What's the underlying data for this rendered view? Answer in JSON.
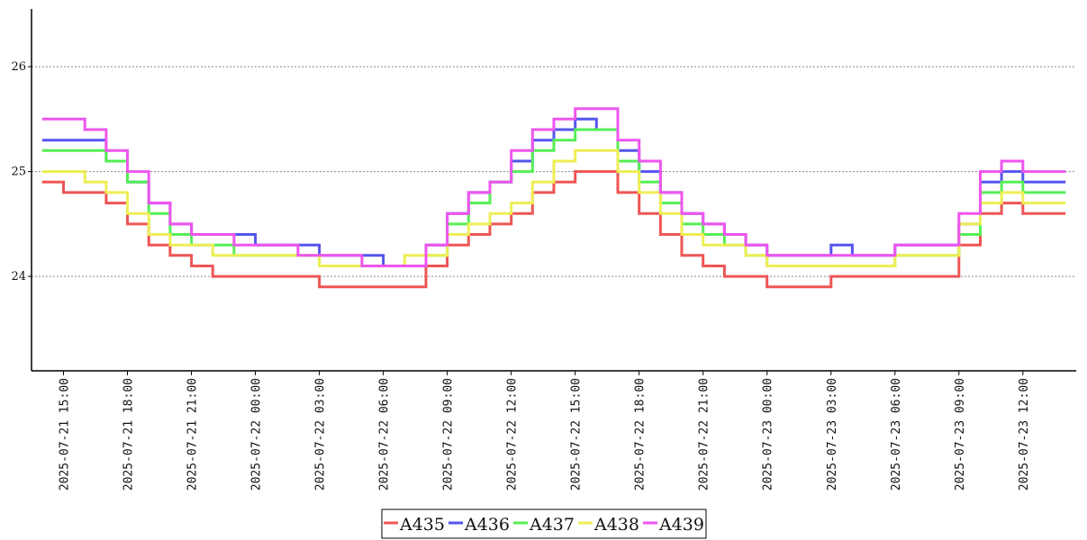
{
  "chart_data": {
    "type": "line",
    "title": "",
    "xlabel": "",
    "ylabel": "",
    "x_range": [
      "2025-07-21 13:30",
      "2025-07-23 14:30"
    ],
    "ylim": [
      23.1,
      26.55
    ],
    "yticks": [
      24,
      25,
      26
    ],
    "ytick_labels": [
      "24",
      "25",
      "26"
    ],
    "grid": "horizontal-dotted",
    "legend_position": "bottom-center",
    "xtick_labels": [
      "2025-07-21 15:00",
      "2025-07-21 18:00",
      "2025-07-21 21:00",
      "2025-07-22 00:00",
      "2025-07-22 03:00",
      "2025-07-22 06:00",
      "2025-07-22 09:00",
      "2025-07-22 12:00",
      "2025-07-22 15:00",
      "2025-07-22 18:00",
      "2025-07-22 21:00",
      "2025-07-23 00:00",
      "2025-07-23 03:00",
      "2025-07-23 06:00",
      "2025-07-23 09:00",
      "2025-07-23 12:00"
    ],
    "x": [
      "2025-07-21 14:00",
      "2025-07-21 15:00",
      "2025-07-21 16:00",
      "2025-07-21 17:00",
      "2025-07-21 18:00",
      "2025-07-21 19:00",
      "2025-07-21 20:00",
      "2025-07-21 21:00",
      "2025-07-21 22:00",
      "2025-07-21 23:00",
      "2025-07-22 00:00",
      "2025-07-22 01:00",
      "2025-07-22 02:00",
      "2025-07-22 03:00",
      "2025-07-22 04:00",
      "2025-07-22 05:00",
      "2025-07-22 06:00",
      "2025-07-22 07:00",
      "2025-07-22 08:00",
      "2025-07-22 09:00",
      "2025-07-22 10:00",
      "2025-07-22 11:00",
      "2025-07-22 12:00",
      "2025-07-22 13:00",
      "2025-07-22 14:00",
      "2025-07-22 15:00",
      "2025-07-22 16:00",
      "2025-07-22 17:00",
      "2025-07-22 18:00",
      "2025-07-22 19:00",
      "2025-07-22 20:00",
      "2025-07-22 21:00",
      "2025-07-22 22:00",
      "2025-07-22 23:00",
      "2025-07-23 00:00",
      "2025-07-23 01:00",
      "2025-07-23 02:00",
      "2025-07-23 03:00",
      "2025-07-23 04:00",
      "2025-07-23 05:00",
      "2025-07-23 06:00",
      "2025-07-23 07:00",
      "2025-07-23 08:00",
      "2025-07-23 09:00",
      "2025-07-23 10:00",
      "2025-07-23 11:00",
      "2025-07-23 12:00",
      "2025-07-23 13:00",
      "2025-07-23 14:00"
    ],
    "series": [
      {
        "name": "A435",
        "color": "#ee5555",
        "values": [
          24.9,
          24.8,
          24.8,
          24.7,
          24.5,
          24.3,
          24.2,
          24.1,
          24.0,
          24.0,
          24.0,
          24.0,
          24.0,
          23.9,
          23.9,
          23.9,
          23.9,
          23.9,
          24.1,
          24.3,
          24.4,
          24.5,
          24.6,
          24.8,
          24.9,
          25.0,
          25.0,
          24.8,
          24.6,
          24.4,
          24.2,
          24.1,
          24.0,
          24.0,
          23.9,
          23.9,
          23.9,
          24.0,
          24.0,
          24.0,
          24.0,
          24.0,
          24.0,
          24.3,
          24.6,
          24.7,
          24.6,
          24.6,
          24.6
        ]
      },
      {
        "name": "A436",
        "color": "#5555ee",
        "values": [
          25.3,
          25.3,
          25.3,
          25.1,
          24.9,
          24.7,
          24.5,
          24.4,
          24.4,
          24.4,
          24.3,
          24.3,
          24.3,
          24.2,
          24.2,
          24.2,
          24.1,
          24.1,
          24.3,
          24.6,
          24.8,
          24.9,
          25.1,
          25.3,
          25.4,
          25.5,
          25.4,
          25.2,
          25.0,
          24.8,
          24.6,
          24.5,
          24.4,
          24.3,
          24.2,
          24.2,
          24.2,
          24.3,
          24.2,
          24.2,
          24.3,
          24.3,
          24.3,
          24.5,
          24.9,
          25.0,
          24.9,
          24.9,
          24.9
        ]
      },
      {
        "name": "A437",
        "color": "#55ee55",
        "values": [
          25.2,
          25.2,
          25.2,
          25.1,
          24.9,
          24.6,
          24.4,
          24.3,
          24.3,
          24.2,
          24.2,
          24.2,
          24.2,
          24.1,
          24.1,
          24.1,
          24.1,
          24.1,
          24.2,
          24.5,
          24.7,
          24.9,
          25.0,
          25.2,
          25.3,
          25.4,
          25.4,
          25.1,
          24.9,
          24.7,
          24.5,
          24.4,
          24.3,
          24.2,
          24.1,
          24.1,
          24.1,
          24.1,
          24.1,
          24.1,
          24.2,
          24.2,
          24.2,
          24.4,
          24.8,
          24.9,
          24.8,
          24.8,
          24.8
        ]
      },
      {
        "name": "A438",
        "color": "#eeee55",
        "values": [
          25.0,
          25.0,
          24.9,
          24.8,
          24.6,
          24.4,
          24.3,
          24.3,
          24.2,
          24.2,
          24.2,
          24.2,
          24.2,
          24.1,
          24.1,
          24.1,
          24.1,
          24.2,
          24.2,
          24.4,
          24.5,
          24.6,
          24.7,
          24.9,
          25.1,
          25.2,
          25.2,
          25.0,
          24.8,
          24.6,
          24.4,
          24.3,
          24.3,
          24.2,
          24.1,
          24.1,
          24.1,
          24.1,
          24.1,
          24.1,
          24.2,
          24.2,
          24.2,
          24.5,
          24.7,
          24.8,
          24.7,
          24.7,
          24.7
        ]
      },
      {
        "name": "A439",
        "color": "#ee55ee",
        "values": [
          25.5,
          25.5,
          25.4,
          25.2,
          25.0,
          24.7,
          24.5,
          24.4,
          24.4,
          24.3,
          24.3,
          24.3,
          24.2,
          24.2,
          24.2,
          24.1,
          24.1,
          24.1,
          24.3,
          24.6,
          24.8,
          24.9,
          25.2,
          25.4,
          25.5,
          25.6,
          25.6,
          25.3,
          25.1,
          24.8,
          24.6,
          24.5,
          24.4,
          24.3,
          24.2,
          24.2,
          24.2,
          24.2,
          24.2,
          24.2,
          24.3,
          24.3,
          24.3,
          24.6,
          25.0,
          25.1,
          25.0,
          25.0,
          25.0
        ]
      }
    ]
  }
}
